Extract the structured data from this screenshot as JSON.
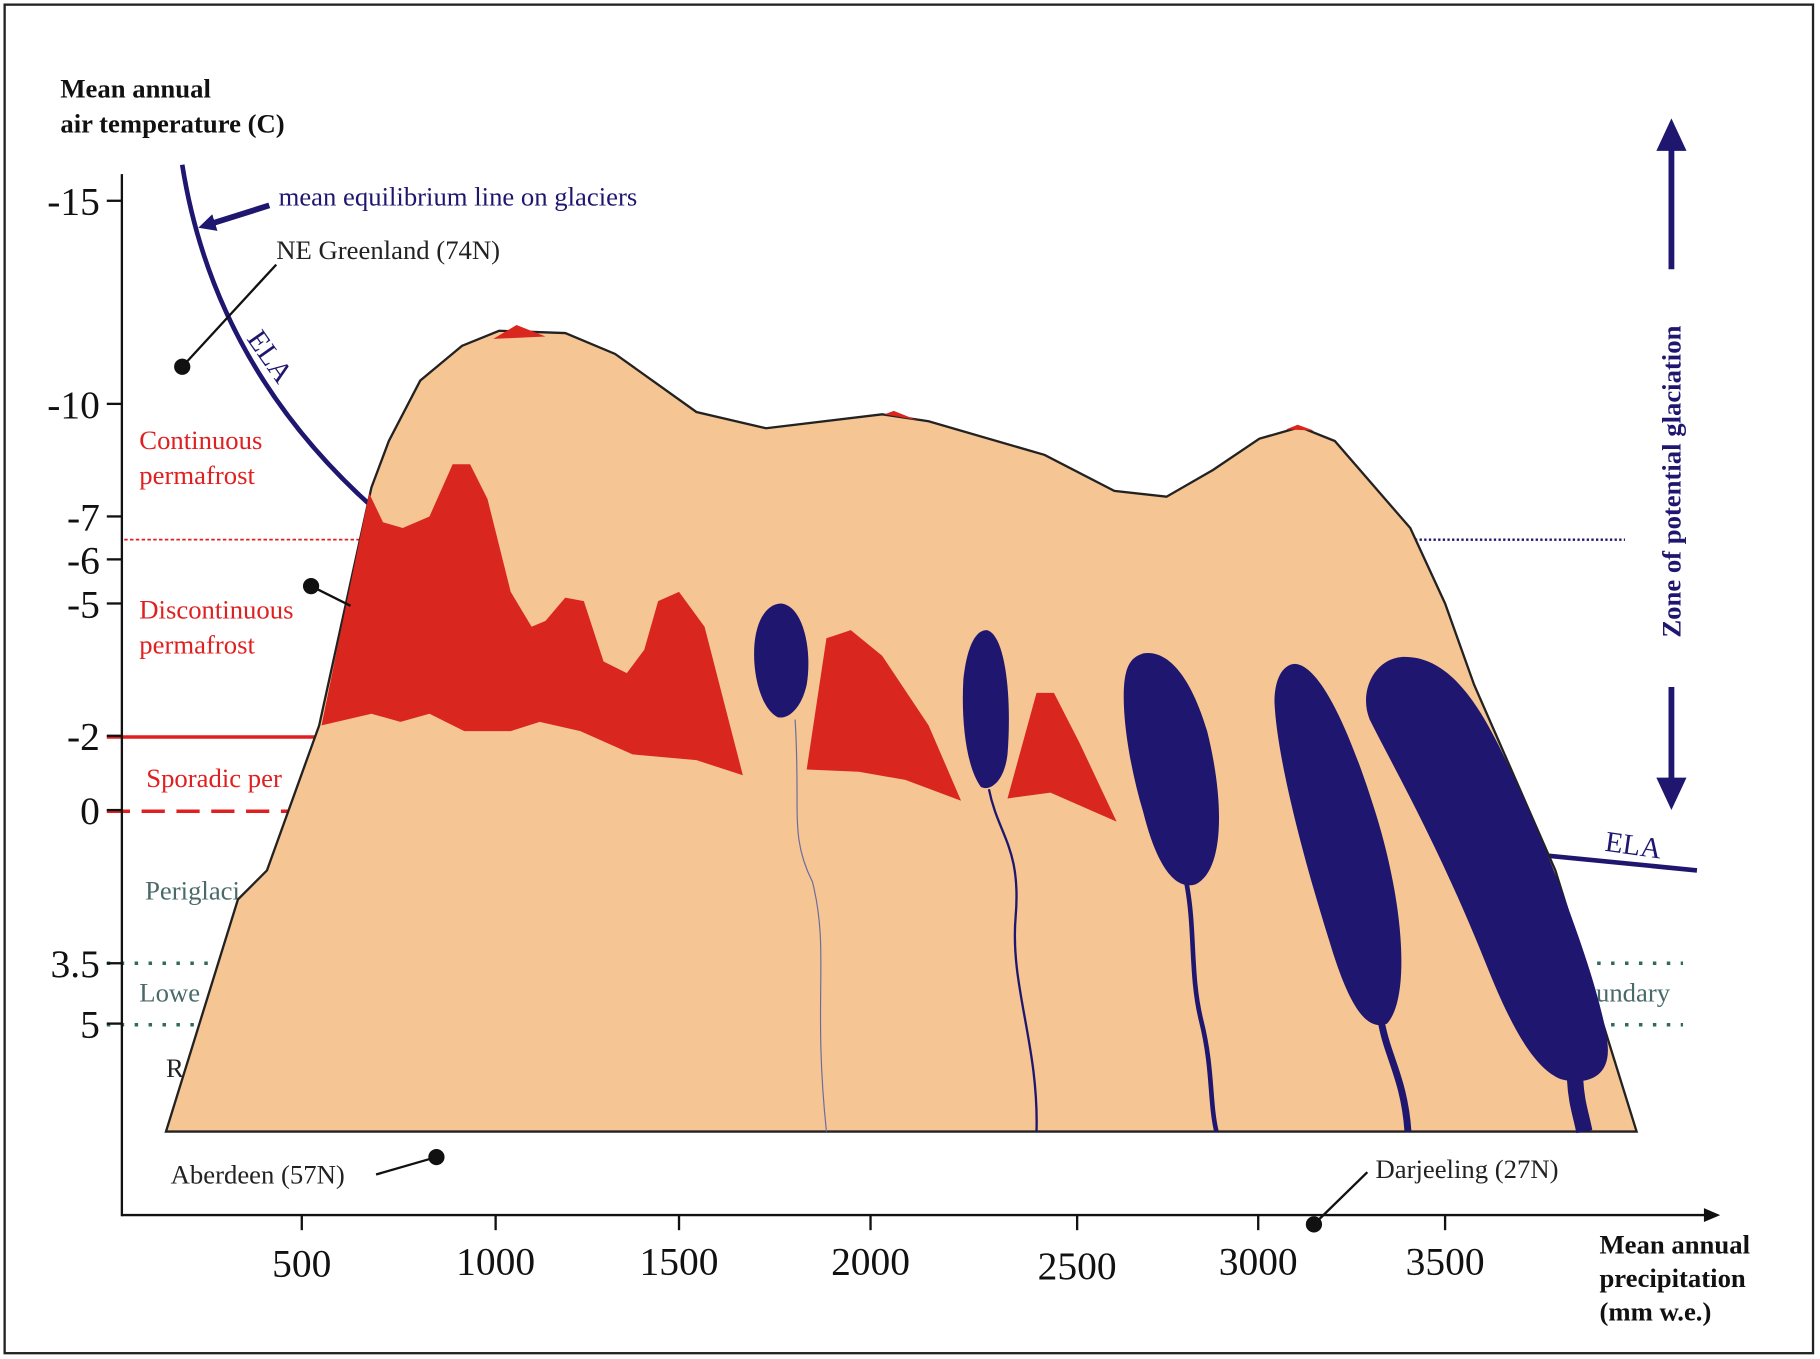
{
  "y_axis": {
    "title": [
      "Mean annual",
      "air temperature (C)"
    ],
    "ticks": [
      "-15",
      "-10",
      "-7",
      "-6",
      "-5",
      "-2",
      "0",
      "3.5",
      "5"
    ]
  },
  "x_axis": {
    "title": [
      "Mean annual",
      "precipitation",
      "(mm w.e.)"
    ],
    "ticks": [
      "500",
      "1000",
      "1500",
      "2000",
      "2500",
      "3000",
      "3500"
    ]
  },
  "labels": {
    "equilibrium": "mean equilibrium line on glaciers",
    "greenland": "NE Greenland (74N)",
    "ela_left": "ELA",
    "ela_right": "ELA",
    "continuous": [
      "Continuous",
      "permafrost"
    ],
    "discontinuous": [
      "Discontinuous",
      "permafrost"
    ],
    "sporadic": "Sporadic per",
    "periglacial": "Periglaci",
    "lower": "Lowe",
    "boundary": "undary",
    "r": "R",
    "aberdeen": "Aberdeen (57N)",
    "darjeeling": "Darjeeling (27N)",
    "zone": "Zone of potential glaciation"
  }
}
